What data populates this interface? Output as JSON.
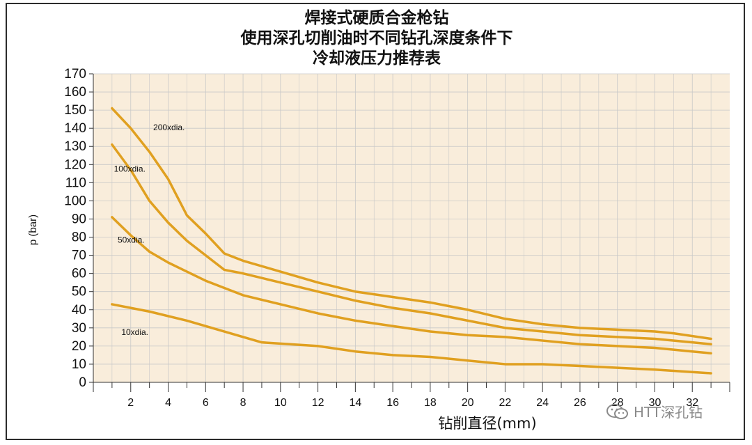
{
  "title_lines": [
    "焊接式硬质合金枪钻",
    "使用深孔切削油时不同钻孔深度条件下",
    "冷却液压力推荐表"
  ],
  "watermark": "HTT深孔钻",
  "chart_data": {
    "type": "line",
    "xlabel": "钻削直径(mm)",
    "ylabel": "p (bar)",
    "xlim": [
      0,
      34
    ],
    "ylim": [
      0,
      170
    ],
    "x_ticks": [
      2,
      4,
      6,
      8,
      10,
      12,
      14,
      16,
      18,
      20,
      22,
      24,
      26,
      28,
      30,
      32
    ],
    "y_ticks": [
      0,
      10,
      20,
      30,
      40,
      50,
      60,
      70,
      80,
      90,
      100,
      110,
      120,
      130,
      140,
      150,
      160,
      170
    ],
    "grid": true,
    "colors": {
      "line": "#E0A020",
      "plot_bg": "#F9EDDB",
      "grid": "#c8c8c8"
    },
    "series": [
      {
        "name": "200xdia.",
        "x": [
          1,
          2,
          3,
          4,
          5,
          6,
          7,
          8,
          10,
          12,
          14,
          16,
          18,
          20,
          22,
          24,
          26,
          28,
          30,
          31,
          33
        ],
        "y": [
          151,
          140,
          127,
          112,
          92,
          82,
          71,
          67,
          61,
          55,
          50,
          47,
          44,
          40,
          35,
          32,
          30,
          29,
          28,
          27,
          24
        ]
      },
      {
        "name": "100xdia.",
        "x": [
          1,
          2,
          3,
          4,
          5,
          6,
          7,
          8,
          10,
          12,
          14,
          16,
          18,
          20,
          22,
          24,
          26,
          28,
          30,
          32,
          33
        ],
        "y": [
          131,
          117,
          100,
          88,
          78,
          70,
          62,
          60,
          55,
          50,
          45,
          41,
          38,
          34,
          30,
          28,
          26,
          25,
          24,
          22,
          21
        ]
      },
      {
        "name": "50xdia.",
        "x": [
          1,
          2,
          3,
          4,
          5,
          6,
          7,
          8,
          10,
          12,
          14,
          16,
          18,
          20,
          22,
          24,
          26,
          28,
          30,
          32,
          33
        ],
        "y": [
          91,
          81,
          72,
          66,
          61,
          56,
          52,
          48,
          43,
          38,
          34,
          31,
          28,
          26,
          25,
          23,
          21,
          20,
          19,
          17,
          16
        ]
      },
      {
        "name": "10xdia.",
        "x": [
          1,
          3,
          5,
          7,
          9,
          12,
          14,
          16,
          18,
          20,
          22,
          24,
          26,
          28,
          30,
          33
        ],
        "y": [
          43,
          39,
          34,
          28,
          22,
          20,
          17,
          15,
          14,
          12,
          10,
          10,
          9,
          8,
          7,
          5
        ]
      }
    ],
    "label_positions_data": [
      {
        "series": "200xdia.",
        "x": 3.2,
        "y": 139
      },
      {
        "series": "100xdia.",
        "x": 1.1,
        "y": 116
      },
      {
        "series": "50xdia.",
        "x": 1.3,
        "y": 77
      },
      {
        "series": "10xdia.",
        "x": 1.5,
        "y": 26
      }
    ]
  }
}
